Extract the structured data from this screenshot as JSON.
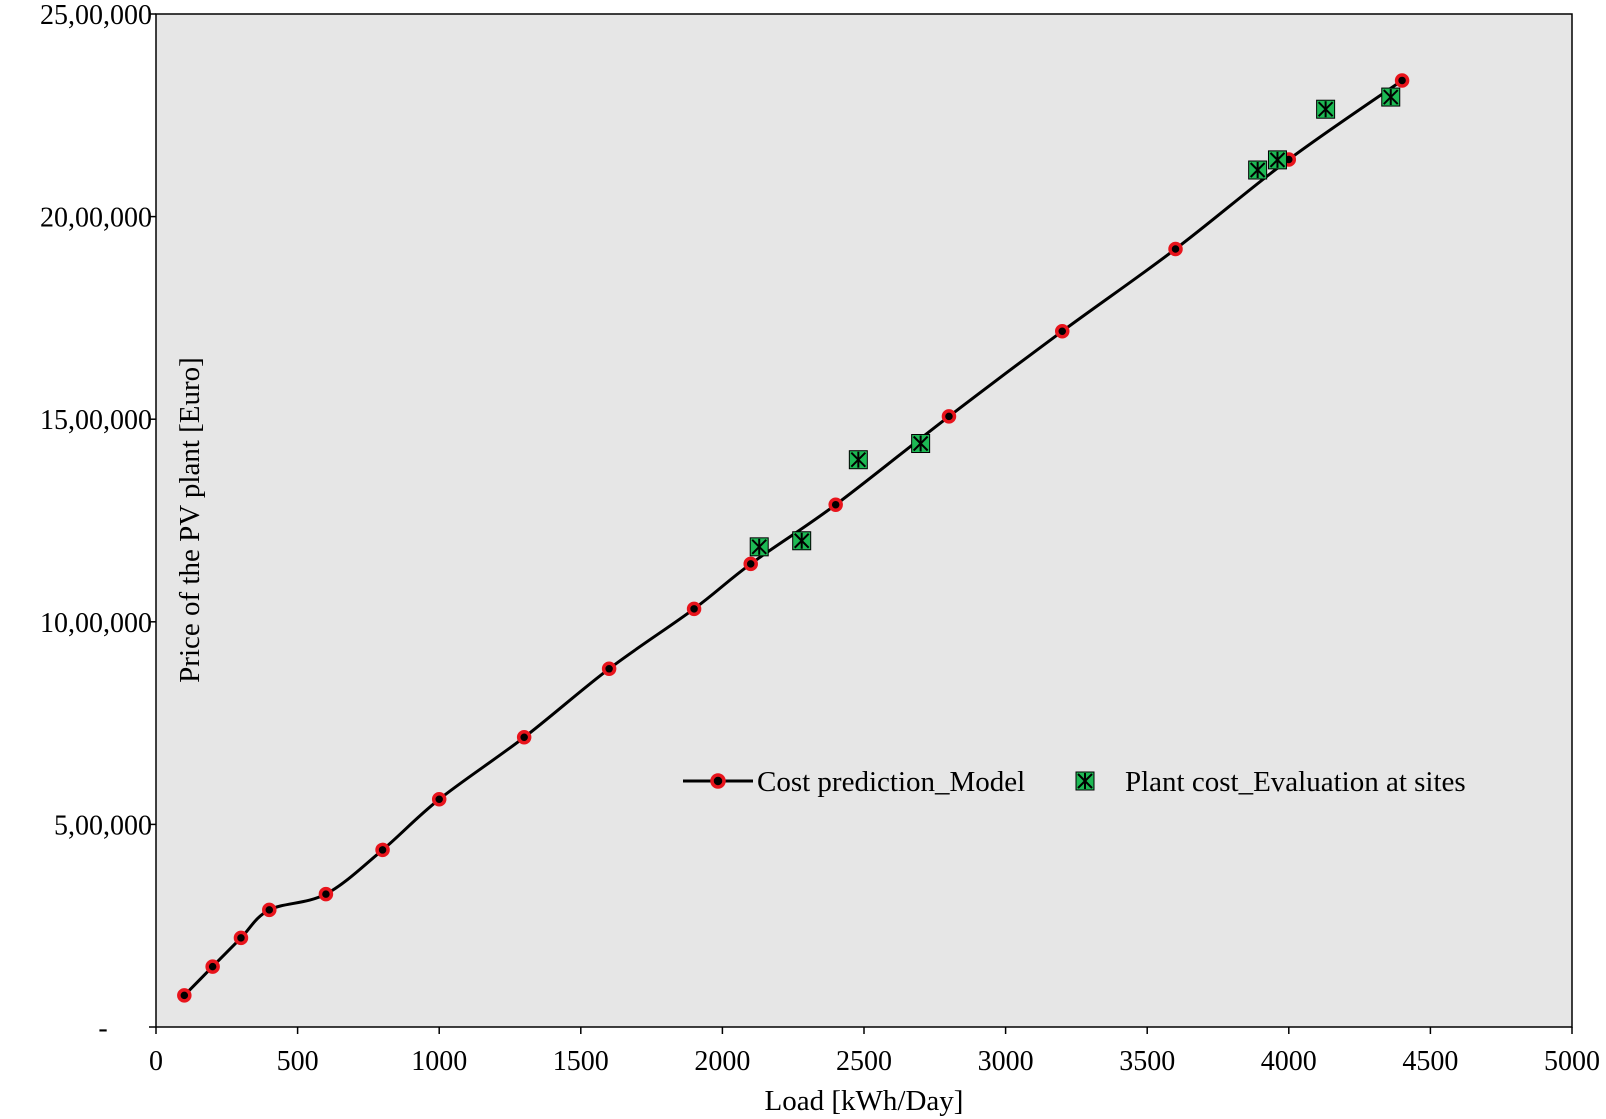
{
  "chart_data": {
    "type": "line",
    "title": "",
    "xlabel": "Load [kWh/Day]",
    "ylabel": "Price of the PV plant [Euro]",
    "xlim": [
      0,
      5000
    ],
    "ylim": [
      0,
      2500000
    ],
    "x_ticks": [
      0,
      500,
      1000,
      1500,
      2000,
      2500,
      3000,
      3500,
      4000,
      4500,
      5000
    ],
    "x_tick_labels": [
      "0",
      "500",
      "1000",
      "1500",
      "2000",
      "2500",
      "3000",
      "3500",
      "4000",
      "4500",
      "5000"
    ],
    "y_ticks": [
      0,
      500000,
      1000000,
      1500000,
      2000000,
      2500000
    ],
    "y_tick_labels": [
      "-",
      "5,00,000",
      "10,00,000",
      "15,00,000",
      "20,00,000",
      "25,00,000"
    ],
    "grid": false,
    "legend_position": "middle-right",
    "series": [
      {
        "name": "Cost prediction_Model",
        "style": "smooth-line-with-markers",
        "color": "#000000",
        "marker_fill": "#000000",
        "marker_edge": "#e8141c",
        "x": [
          100,
          200,
          300,
          400,
          600,
          800,
          1000,
          1300,
          1600,
          1900,
          2100,
          2400,
          2800,
          3200,
          3600,
          4000,
          4400
        ],
        "y": [
          78000,
          149000,
          220000,
          289000,
          328000,
          437000,
          562000,
          715000,
          884000,
          1032000,
          1143000,
          1289000,
          1507000,
          1717000,
          1920000,
          2141000,
          2336000
        ]
      },
      {
        "name": "Plant cost_Evaluation at sites",
        "style": "markers",
        "marker": "square-x",
        "marker_fill": "#1db954",
        "marker_edge": "#000000",
        "x": [
          2130,
          2280,
          2480,
          2700,
          3890,
          3960,
          4130,
          4360
        ],
        "y": [
          1185000,
          1200000,
          1400000,
          1440000,
          2115000,
          2140000,
          2265000,
          2295000
        ]
      }
    ]
  }
}
